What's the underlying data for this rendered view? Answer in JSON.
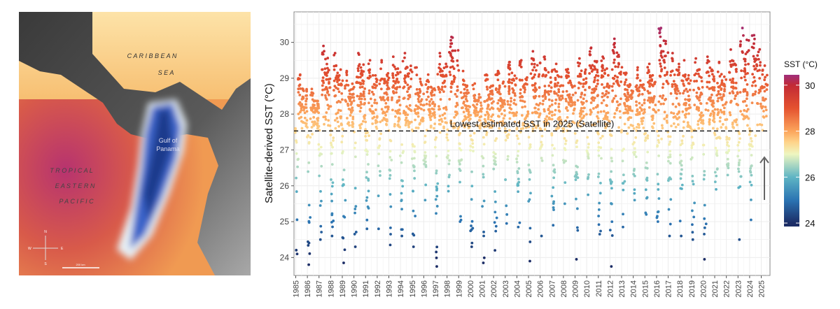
{
  "map": {
    "labels": {
      "caribbean_1": "C A R I B B E A N",
      "caribbean_2": "S E A",
      "gulf_1": "Gulf of",
      "gulf_2": "Panama",
      "pacific_1": "T R O P I C A L",
      "pacific_2": "E A S T E R N",
      "pacific_3": "P A C I F I C"
    },
    "compass": {
      "n": "N",
      "e": "E",
      "s": "S",
      "w": "W"
    },
    "scale_label": "200 km"
  },
  "chart_data": {
    "type": "scatter",
    "title": "",
    "xlabel": "",
    "ylabel": "Satellite-derived SST (°C)",
    "ylim": [
      23.5,
      30.85
    ],
    "xlim": [
      1984.85,
      2025.75
    ],
    "y_ticks": [
      24,
      25,
      26,
      27,
      28,
      29,
      30
    ],
    "x_ticks": [
      1985,
      1986,
      1987,
      1988,
      1989,
      1990,
      1991,
      1992,
      1993,
      1994,
      1995,
      1996,
      1997,
      1998,
      1999,
      2000,
      2001,
      2002,
      2003,
      2004,
      2005,
      2006,
      2007,
      2008,
      2009,
      2010,
      2011,
      2012,
      2013,
      2014,
      2015,
      2016,
      2017,
      2018,
      2019,
      2020,
      2021,
      2022,
      2023,
      2024,
      2025
    ],
    "grid": true,
    "annual_max": [
      29.1,
      28.7,
      29.9,
      29.7,
      29.2,
      29.7,
      29.5,
      29.5,
      29.6,
      29.7,
      29.3,
      29.1,
      29.7,
      30.15,
      29.2,
      28.85,
      29.1,
      29.2,
      29.45,
      29.5,
      29.75,
      29.6,
      29.4,
      29.25,
      29.55,
      29.85,
      29.6,
      30.1,
      29.15,
      29.3,
      29.4,
      30.4,
      29.7,
      29.5,
      29.55,
      29.6,
      29.45,
      29.8,
      30.4,
      30.2,
      29.35
    ],
    "annual_min": [
      24.1,
      23.8,
      24.5,
      24.6,
      23.85,
      24.3,
      24.8,
      24.8,
      24.35,
      24.6,
      24.3,
      25.6,
      23.75,
      25.85,
      25.0,
      24.3,
      23.85,
      24.2,
      24.95,
      24.85,
      23.9,
      24.6,
      24.9,
      25.5,
      23.95,
      25.75,
      24.65,
      23.75,
      24.85,
      25.6,
      25.2,
      25.0,
      24.6,
      24.6,
      24.5,
      23.95,
      25.9,
      26.3,
      24.5,
      25.05,
      27.55
    ],
    "reference_line": {
      "value": 27.53,
      "label": "Lowest estimated SST in 2025 (Satellite)"
    },
    "legend": {
      "title": "SST (°C)",
      "ticks": [
        24,
        26,
        28,
        30
      ],
      "placement": "right"
    },
    "colors": {
      "c24": "#1c2d66",
      "c25": "#2b74b3",
      "c26": "#5fb5c4",
      "c27": "#eef6c0",
      "c275": "#fed58c",
      "c28": "#fca55c",
      "c29": "#e4522f",
      "c30": "#c22a35",
      "c305": "#a02f7c"
    }
  }
}
